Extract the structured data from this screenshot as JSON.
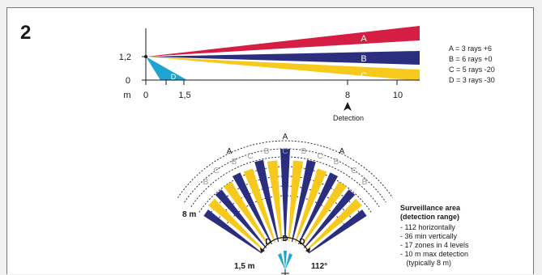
{
  "figure_number": "2",
  "colors": {
    "A": "#d41e44",
    "B": "#2b2e7e",
    "C": "#f7c91c",
    "D": "#1fa4d2",
    "ink": "#1a1a1a",
    "label_white": "#ffffff",
    "label_grey": "#999999"
  },
  "side_view": {
    "beam_labels": [
      "A",
      "B",
      "C",
      "D"
    ],
    "y_axis_ticks": [
      "1,2",
      "0"
    ],
    "x_axis_unit": "m",
    "x_axis_ticks": [
      "0",
      "1,5",
      "8",
      "10"
    ],
    "detection_label": "Detection",
    "legend": [
      "A = 3 rays +6",
      "B = 6 rays +0",
      "C = 5 rays -20",
      "D = 3 rays -30"
    ]
  },
  "top_view": {
    "zone_labels_outer": [
      "A",
      "A",
      "A"
    ],
    "zone_labels_b": [
      "B",
      "B",
      "B",
      "B",
      "B",
      "B"
    ],
    "zone_labels_c": [
      "C",
      "C",
      "C",
      "C",
      "C"
    ],
    "zone_labels_d": [
      "D",
      "D",
      "D"
    ],
    "range_label": "8 m",
    "near_label": "1,5 m",
    "angle_label": "112°"
  },
  "surveillance": {
    "title": "Surveillance area",
    "subtitle": "(detection range)",
    "items": [
      "- 112 horizontally",
      "- 36 min vertically",
      "- 17 zones in 4 levels",
      "- 10 m max detection",
      "   (typically 8 m)"
    ]
  }
}
